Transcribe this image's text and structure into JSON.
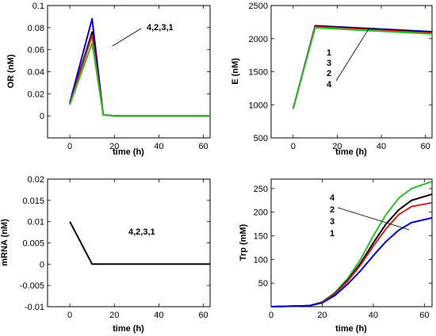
{
  "chart_data": [
    {
      "type": "line",
      "xlabel": "time (h)",
      "ylabel": "OR (nM)",
      "xlim": [
        -10,
        63
      ],
      "ylim": [
        -0.02,
        0.1
      ],
      "xticks": [
        "0",
        "20",
        "40",
        "60"
      ],
      "xtick_values": [
        0,
        20,
        40,
        60
      ],
      "yticks": [
        "0",
        "0.02",
        "0.04",
        "0.06",
        "0.08",
        "0.1"
      ],
      "ytick_values": [
        0,
        0.02,
        0.04,
        0.06,
        0.08,
        0.1
      ],
      "annotation": "4,2,3,1",
      "series": [
        {
          "color": "#0000cc",
          "x": [
            0,
            10,
            15,
            20,
            63
          ],
          "y": [
            0.012,
            0.088,
            0.001,
            0.0,
            0.0
          ]
        },
        {
          "color": "#000000",
          "x": [
            0,
            10,
            15,
            20,
            63
          ],
          "y": [
            0.011,
            0.076,
            0.001,
            0.0,
            0.0
          ]
        },
        {
          "color": "#cc2222",
          "x": [
            0,
            10,
            15,
            20,
            63
          ],
          "y": [
            0.011,
            0.073,
            0.001,
            0.0,
            0.0
          ]
        },
        {
          "color": "#33bb33",
          "x": [
            0,
            10,
            15,
            20,
            63
          ],
          "y": [
            0.01,
            0.066,
            0.001,
            0.0,
            0.0
          ]
        }
      ]
    },
    {
      "type": "line",
      "xlabel": "time (h)",
      "ylabel": "E (nM)",
      "xlim": [
        -10,
        63
      ],
      "ylim": [
        500,
        2500
      ],
      "xticks": [
        "0",
        "20",
        "40",
        "60"
      ],
      "xtick_values": [
        0,
        20,
        40,
        60
      ],
      "yticks": [
        "500",
        "1000",
        "1500",
        "2000",
        "2500"
      ],
      "ytick_values": [
        500,
        1000,
        1500,
        2000,
        2500
      ],
      "annotation_lines": [
        "1",
        "3",
        "2",
        "4"
      ],
      "series": [
        {
          "color": "#0000cc",
          "x": [
            0,
            10,
            63
          ],
          "y": [
            940,
            2195,
            2105
          ]
        },
        {
          "color": "#000000",
          "x": [
            0,
            10,
            63
          ],
          "y": [
            940,
            2190,
            2095
          ]
        },
        {
          "color": "#cc2222",
          "x": [
            0,
            10,
            63
          ],
          "y": [
            940,
            2180,
            2085
          ]
        },
        {
          "color": "#33bb33",
          "x": [
            0,
            10,
            63
          ],
          "y": [
            940,
            2165,
            2070
          ]
        }
      ]
    },
    {
      "type": "line",
      "xlabel": "time (h)",
      "ylabel": "mRNA (nM)",
      "xlim": [
        -10,
        63
      ],
      "ylim": [
        -0.01,
        0.02
      ],
      "xticks": [
        "0",
        "20",
        "40",
        "60"
      ],
      "xtick_values": [
        0,
        20,
        40,
        60
      ],
      "yticks": [
        "-0.01",
        "-0.005",
        "0",
        "0.005",
        "0.01",
        "0.015",
        "0.02"
      ],
      "ytick_values": [
        -0.01,
        -0.005,
        0,
        0.005,
        0.01,
        0.015,
        0.02
      ],
      "annotation": "4,2,3,1",
      "series": [
        {
          "color": "#000000",
          "x": [
            0,
            10,
            63
          ],
          "y": [
            0.01,
            0.0,
            0.0
          ]
        }
      ]
    },
    {
      "type": "line",
      "xlabel": "time (h)",
      "ylabel": "Trp (mM)",
      "xlim": [
        0,
        63
      ],
      "ylim": [
        0,
        270
      ],
      "xticks": [
        "0",
        "20",
        "40",
        "60"
      ],
      "xtick_values": [
        0,
        20,
        40,
        60
      ],
      "yticks": [
        "50",
        "100",
        "150",
        "200",
        "250"
      ],
      "ytick_values": [
        50,
        100,
        150,
        200,
        250
      ],
      "annotation_lines": [
        "4",
        "2",
        "3",
        "1"
      ],
      "series": [
        {
          "color": "#33bb33",
          "x": [
            0,
            15,
            20,
            25,
            30,
            35,
            40,
            45,
            50,
            55,
            63
          ],
          "y": [
            0,
            2,
            10,
            30,
            60,
            100,
            150,
            195,
            230,
            250,
            265
          ]
        },
        {
          "color": "#000000",
          "x": [
            0,
            15,
            20,
            25,
            30,
            35,
            40,
            45,
            50,
            55,
            63
          ],
          "y": [
            0,
            2,
            9,
            28,
            56,
            92,
            135,
            175,
            205,
            225,
            238
          ]
        },
        {
          "color": "#cc2222",
          "x": [
            0,
            15,
            20,
            25,
            30,
            35,
            40,
            45,
            50,
            55,
            63
          ],
          "y": [
            0,
            2,
            9,
            27,
            54,
            88,
            128,
            165,
            195,
            212,
            220
          ]
        },
        {
          "color": "#0000cc",
          "x": [
            0,
            15,
            20,
            25,
            30,
            35,
            40,
            45,
            50,
            55,
            63
          ],
          "y": [
            0,
            2,
            8,
            24,
            48,
            76,
            108,
            138,
            162,
            178,
            188
          ]
        }
      ]
    }
  ]
}
